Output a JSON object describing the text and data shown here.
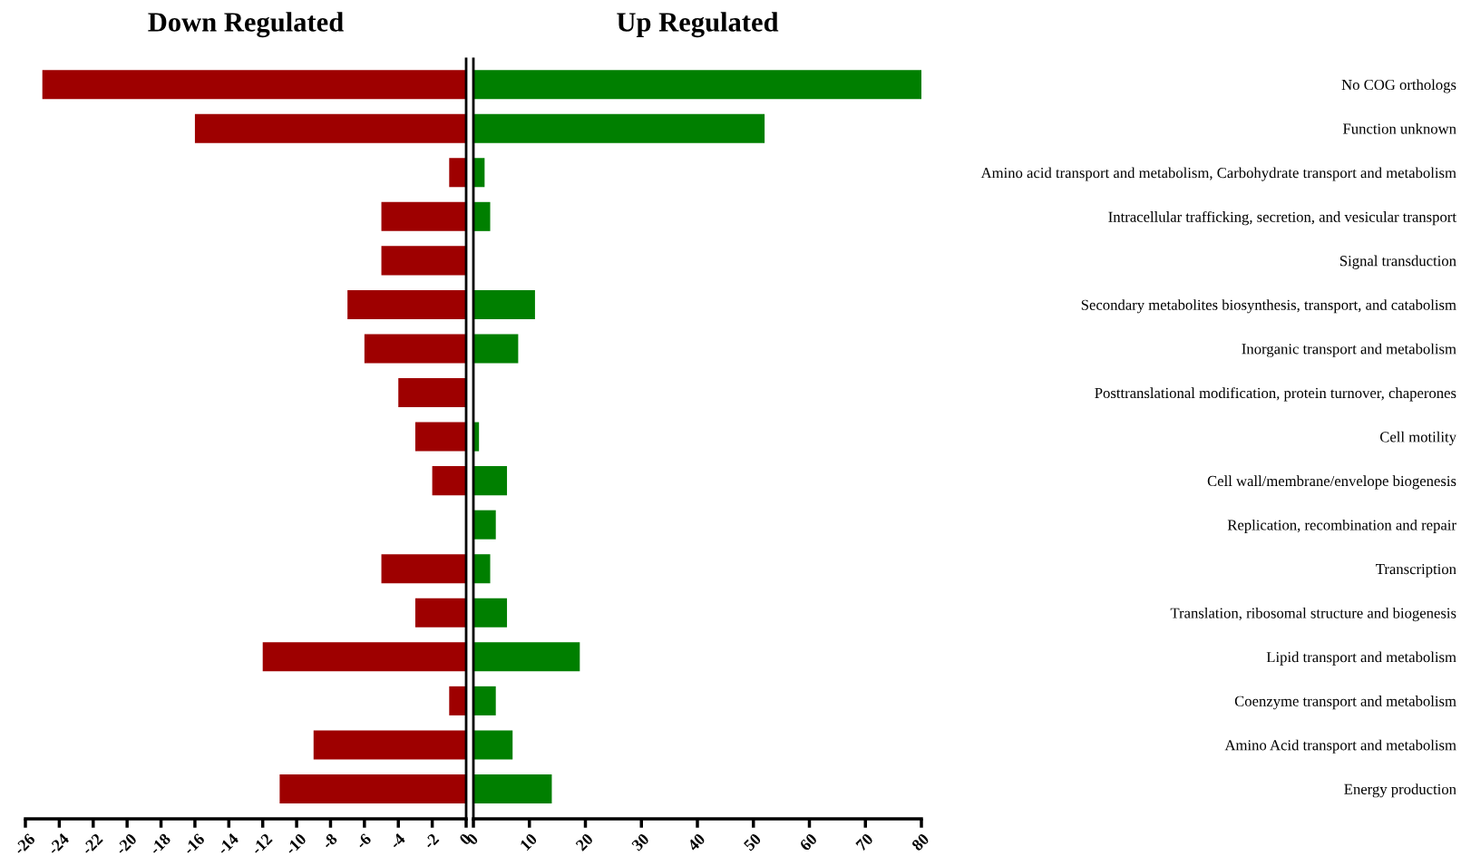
{
  "chart_data": [
    {
      "type": "bar",
      "orientation": "horizontal",
      "title": "Down Regulated",
      "tick_labels": "x",
      "categories": [
        null,
        null,
        null,
        null,
        null,
        null,
        null,
        null,
        null,
        null,
        null,
        null,
        null,
        null,
        null,
        null,
        null
      ],
      "values": [
        -25,
        -16,
        -1,
        -5,
        -5,
        -7,
        -6,
        -4,
        -3,
        -2,
        0,
        -5,
        -3,
        -12,
        -1,
        -9,
        -11
      ],
      "color": "#9e0000",
      "xlim": [
        -26,
        0
      ],
      "xticks": [
        -26,
        -24,
        -22,
        -20,
        -18,
        -16,
        -14,
        -12,
        -10,
        -8,
        -6,
        -4,
        -2,
        0
      ],
      "grid": false
    },
    {
      "type": "bar",
      "orientation": "horizontal",
      "title": "Up Regulated",
      "categories": [
        "No COG orthologs",
        "Function unknown",
        "Amino acid transport and metabolism, Carbohydrate transport and metabolism",
        "Intracellular trafficking, secretion, and vesicular transport",
        "Signal transduction",
        "Secondary metabolites biosynthesis, transport, and catabolism",
        "Inorganic transport and metabolism",
        "Posttranslational modification, protein turnover, chaperones",
        "Cell motility",
        "Cell wall/membrane/envelope biogenesis",
        "Replication, recombination and repair",
        "Transcription",
        "Translation, ribosomal structure and biogenesis",
        "Lipid transport and metabolism",
        "Coenzyme transport and metabolism",
        "Amino Acid transport and metabolism",
        "Energy production"
      ],
      "values": [
        80,
        52,
        2,
        3,
        0,
        11,
        8,
        0,
        1,
        6,
        4,
        3,
        6,
        19,
        4,
        7,
        14
      ],
      "color": "#007f00",
      "xlim": [
        0,
        80
      ],
      "xticks": [
        0,
        10,
        20,
        30,
        40,
        50,
        60,
        70,
        80
      ],
      "grid": false
    }
  ]
}
